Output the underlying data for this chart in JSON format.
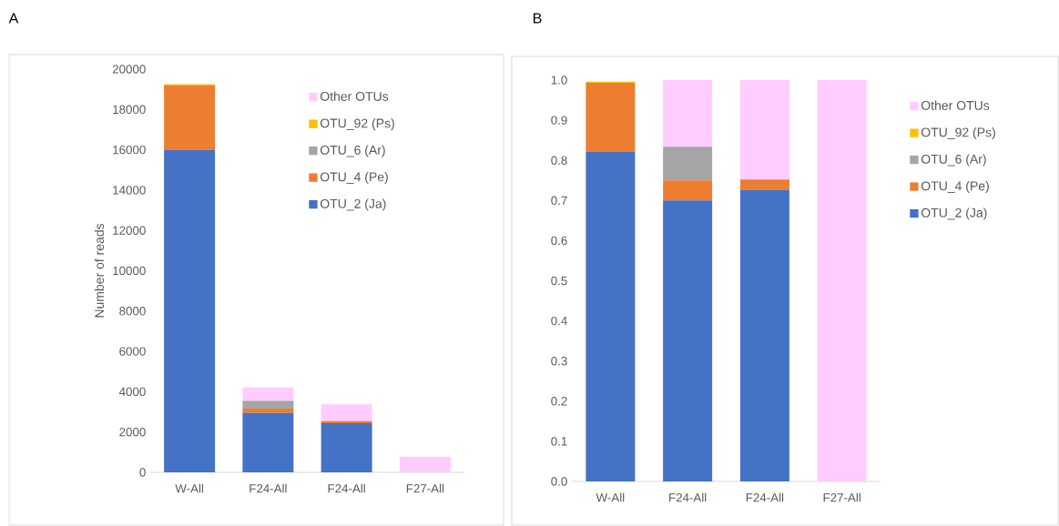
{
  "chart_data": [
    {
      "type": "bar",
      "annotations": [
        "A"
      ],
      "ylabel": "Number of reads",
      "stacked": true,
      "legend": "top right",
      "grid": false,
      "categories": [
        "W-All",
        "F24-All",
        "F24-All",
        "F27-All"
      ],
      "series": [
        {
          "name": "OTU_2 (Ja)",
          "color": "#4472c4",
          "values": [
            16000,
            2950,
            2440,
            0
          ]
        },
        {
          "name": "OTU_4 (Pe)",
          "color": "#ed7d31",
          "values": [
            3200,
            210,
            100,
            0
          ]
        },
        {
          "name": "OTU_6 (Ar)",
          "color": "#a5a5a5",
          "values": [
            null,
            380,
            0,
            0
          ]
        },
        {
          "name": "OTU_92 (Ps)",
          "color": "#ffc000",
          "values": [
            60,
            0,
            0,
            0
          ]
        },
        {
          "name": "Other OTUs",
          "color": "#ffccff",
          "values": [
            null,
            670,
            830,
            780
          ]
        }
      ],
      "ylim": [
        0,
        20000
      ],
      "yticks": [
        0,
        2000,
        4000,
        6000,
        8000,
        10000,
        12000,
        14000,
        16000,
        18000,
        20000
      ]
    },
    {
      "type": "bar",
      "annotations": [
        "B"
      ],
      "stacked": true,
      "legend": "right",
      "grid": false,
      "categories": [
        "W-All",
        "F24-All",
        "F24-All",
        "F27-All"
      ],
      "series": [
        {
          "name": "OTU_2 (Ja)",
          "color": "#4472c4",
          "values": [
            0.822,
            0.7,
            0.727,
            0
          ]
        },
        {
          "name": "OTU_4 (Pe)",
          "color": "#ed7d31",
          "values": [
            0.171,
            0.05,
            0.025,
            0
          ]
        },
        {
          "name": "OTU_6 (Ar)",
          "color": "#a5a5a5",
          "values": [
            null,
            0.084,
            0,
            0
          ]
        },
        {
          "name": "OTU_92 (Ps)",
          "color": "#ffc000",
          "values": [
            0.003,
            0,
            0,
            0
          ]
        },
        {
          "name": "Other OTUs",
          "color": "#ffccff",
          "values": [
            null,
            0.166,
            0.248,
            1.0
          ]
        }
      ],
      "ylim": [
        0,
        1
      ],
      "yticks": [
        {
          "value": 0,
          "label": "0.0"
        },
        {
          "value": 0.1,
          "label": "0.1"
        },
        {
          "value": 0.2,
          "label": "0.2"
        },
        {
          "value": 0.3,
          "label": "0.3"
        },
        {
          "value": 0.4,
          "label": "0.4"
        },
        {
          "value": 0.5,
          "label": "0.5"
        },
        {
          "value": 0.6,
          "label": "0.6"
        },
        {
          "value": 0.7,
          "label": "0.7"
        },
        {
          "value": 0.8,
          "label": "0.8"
        },
        {
          "value": 0.9,
          "label": "0.9"
        },
        {
          "value": 1.0,
          "label": "1.0"
        }
      ]
    }
  ]
}
